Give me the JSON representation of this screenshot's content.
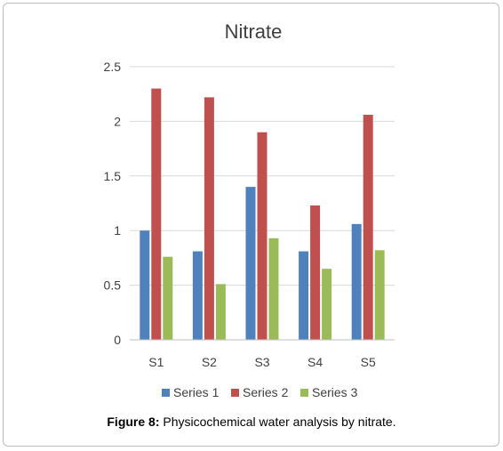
{
  "figure_caption": {
    "label": "Figure 8:",
    "text": "Physicochemical water analysis by nitrate."
  },
  "chart_data": {
    "type": "bar",
    "title": "Nitrate",
    "xlabel": "",
    "ylabel": "",
    "categories": [
      "S1",
      "S2",
      "S3",
      "S4",
      "S5"
    ],
    "ylim": [
      0,
      2.5
    ],
    "yticks": [
      "0",
      "0.5",
      "1",
      "1.5",
      "2",
      "2.5"
    ],
    "grid": true,
    "legend_position": "bottom",
    "series": [
      {
        "name": "Series 1",
        "color": "#4f81bd",
        "values": [
          1.0,
          0.81,
          1.4,
          0.81,
          1.06
        ]
      },
      {
        "name": "Series 2",
        "color": "#c0504d",
        "values": [
          2.3,
          2.22,
          1.9,
          1.23,
          2.06
        ]
      },
      {
        "name": "Series 3",
        "color": "#9bbb59",
        "values": [
          0.76,
          0.51,
          0.93,
          0.65,
          0.82
        ]
      }
    ]
  }
}
